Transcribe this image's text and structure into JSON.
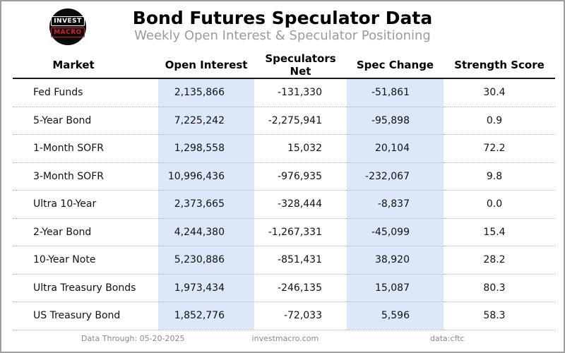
{
  "logo": {
    "line1": "INVEST",
    "line2": "MACRO",
    "red": "#cf2030",
    "background": "#0c0c0c"
  },
  "header": {
    "title": "Bond Futures Speculator Data",
    "subtitle": "Weekly Open Interest & Speculator Positioning"
  },
  "table": {
    "highlight_color": "#dce8f9",
    "columns": [
      "Market",
      "Open Interest",
      "Speculators Net",
      "Spec Change",
      "Strength Score"
    ],
    "rows": [
      [
        "Fed Funds",
        "2,135,866",
        "-131,330",
        "-51,861",
        "30.4"
      ],
      [
        "5-Year Bond",
        "7,225,242",
        "-2,275,941",
        "-95,898",
        "0.9"
      ],
      [
        "1-Month SOFR",
        "1,298,558",
        "15,032",
        "20,104",
        "72.2"
      ],
      [
        "3-Month SOFR",
        "10,996,436",
        "-976,935",
        "-232,067",
        "9.8"
      ],
      [
        "Ultra 10-Year",
        "2,373,665",
        "-328,444",
        "-8,837",
        "0.0"
      ],
      [
        "2-Year Bond",
        "4,244,380",
        "-1,267,331",
        "-45,099",
        "15.4"
      ],
      [
        "10-Year Note",
        "5,230,886",
        "-851,431",
        "38,920",
        "28.2"
      ],
      [
        "Ultra Treasury Bonds",
        "1,973,434",
        "-246,135",
        "15,087",
        "80.3"
      ],
      [
        "US Treasury Bond",
        "1,852,776",
        "-72,033",
        "5,596",
        "58.3"
      ]
    ]
  },
  "footer": {
    "data_through": "Data Through: 05-20-2025",
    "website": "investmacro.com",
    "source": "data:cftc"
  },
  "chart_data": {
    "type": "table",
    "title": "Bond Futures Speculator Data",
    "subtitle": "Weekly Open Interest & Speculator Positioning",
    "columns": [
      "Market",
      "Open Interest",
      "Speculators Net",
      "Spec Change",
      "Strength Score"
    ],
    "highlighted_columns": [
      "Open Interest",
      "Spec Change"
    ],
    "rows": [
      {
        "market": "Fed Funds",
        "open_interest": 2135866,
        "speculators_net": -131330,
        "spec_change": -51861,
        "strength_score": 30.4
      },
      {
        "market": "5-Year Bond",
        "open_interest": 7225242,
        "speculators_net": -2275941,
        "spec_change": -95898,
        "strength_score": 0.9
      },
      {
        "market": "1-Month SOFR",
        "open_interest": 1298558,
        "speculators_net": 15032,
        "spec_change": 20104,
        "strength_score": 72.2
      },
      {
        "market": "3-Month SOFR",
        "open_interest": 10996436,
        "speculators_net": -976935,
        "spec_change": -232067,
        "strength_score": 9.8
      },
      {
        "market": "Ultra 10-Year",
        "open_interest": 2373665,
        "speculators_net": -328444,
        "spec_change": -8837,
        "strength_score": 0.0
      },
      {
        "market": "2-Year Bond",
        "open_interest": 4244380,
        "speculators_net": -1267331,
        "spec_change": -45099,
        "strength_score": 15.4
      },
      {
        "market": "10-Year Note",
        "open_interest": 5230886,
        "speculators_net": -851431,
        "spec_change": 38920,
        "strength_score": 28.2
      },
      {
        "market": "Ultra Treasury Bonds",
        "open_interest": 1973434,
        "speculators_net": -246135,
        "spec_change": 15087,
        "strength_score": 80.3
      },
      {
        "market": "US Treasury Bond",
        "open_interest": 1852776,
        "speculators_net": -72033,
        "spec_change": 5596,
        "strength_score": 58.3
      }
    ],
    "footer": {
      "data_through": "Data Through: 05-20-2025",
      "website": "investmacro.com",
      "source": "data:cftc"
    }
  }
}
